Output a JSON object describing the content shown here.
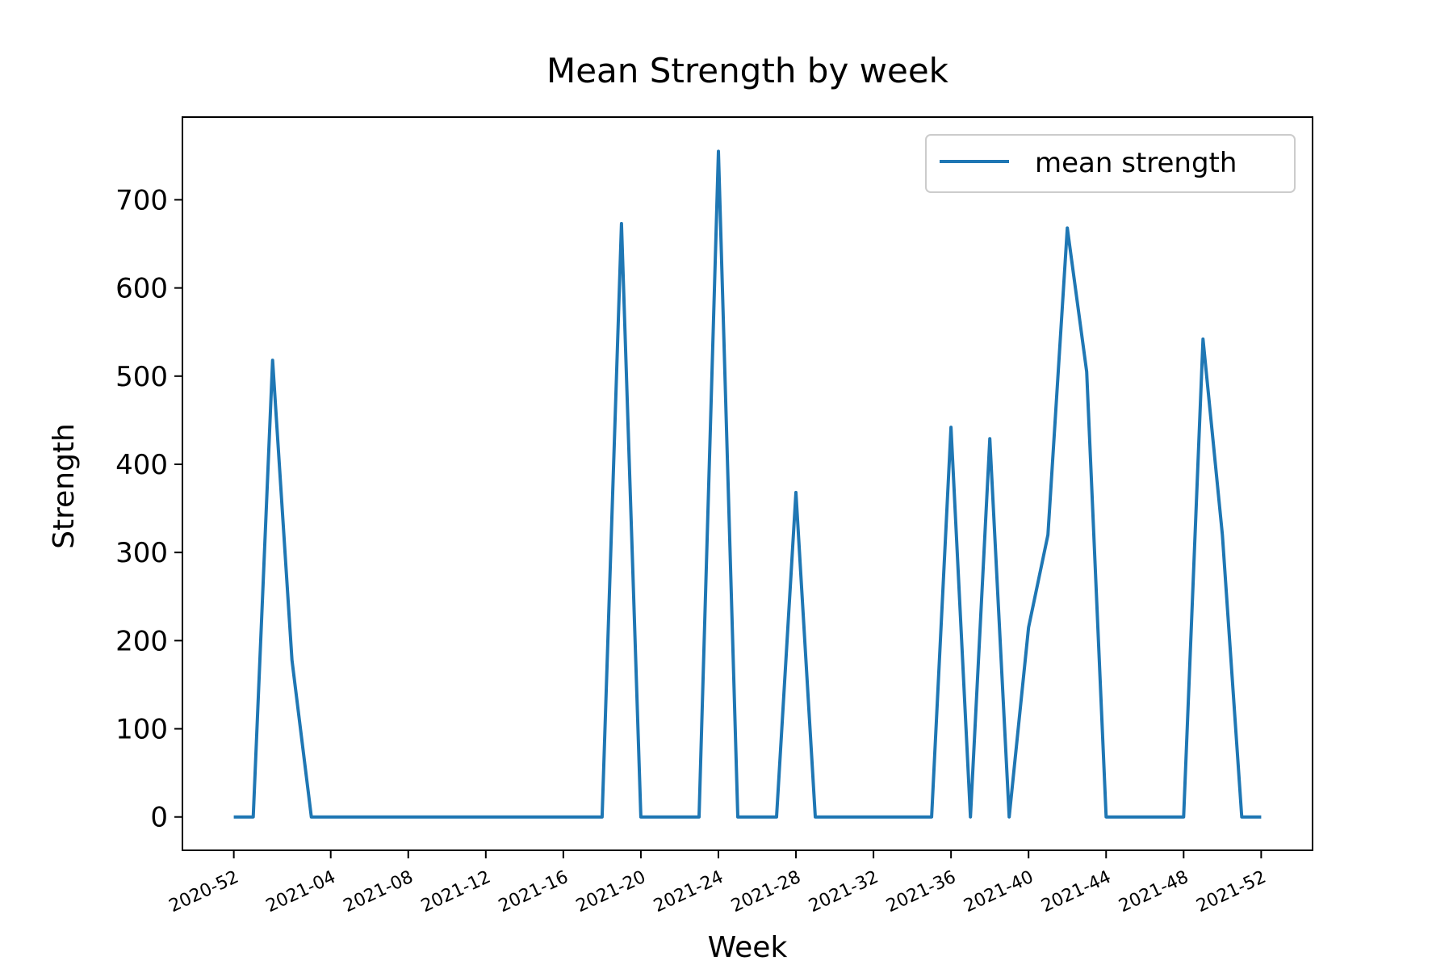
{
  "chart_data": {
    "type": "line",
    "title": "Mean Strength by week",
    "xlabel": "Week",
    "ylabel": "Strength",
    "ylim": [
      -37.8,
      793.8
    ],
    "yticks": [
      0,
      100,
      200,
      300,
      400,
      500,
      600,
      700
    ],
    "xticks": [
      "2020-52",
      "2021-04",
      "2021-08",
      "2021-12",
      "2021-16",
      "2021-20",
      "2021-24",
      "2021-28",
      "2021-32",
      "2021-36",
      "2021-40",
      "2021-44",
      "2021-48",
      "2021-52"
    ],
    "grid": false,
    "legend": {
      "position": "top-right"
    },
    "series": [
      {
        "name": "mean strength",
        "color": "#1f77b4",
        "x": [
          "2020-52",
          "2020-53",
          "2021-01",
          "2021-02",
          "2021-03",
          "2021-04",
          "2021-05",
          "2021-06",
          "2021-07",
          "2021-08",
          "2021-09",
          "2021-10",
          "2021-11",
          "2021-12",
          "2021-13",
          "2021-14",
          "2021-15",
          "2021-16",
          "2021-17",
          "2021-18",
          "2021-19",
          "2021-20",
          "2021-21",
          "2021-22",
          "2021-23",
          "2021-24",
          "2021-25",
          "2021-26",
          "2021-27",
          "2021-28",
          "2021-29",
          "2021-30",
          "2021-31",
          "2021-32",
          "2021-33",
          "2021-34",
          "2021-35",
          "2021-36",
          "2021-37",
          "2021-38",
          "2021-39",
          "2021-40",
          "2021-41",
          "2021-42",
          "2021-43",
          "2021-44",
          "2021-45",
          "2021-46",
          "2021-47",
          "2021-48",
          "2021-49",
          "2021-50",
          "2021-51",
          "2021-52"
        ],
        "values": [
          0,
          0,
          518,
          178,
          0,
          0,
          0,
          0,
          0,
          0,
          0,
          0,
          0,
          0,
          0,
          0,
          0,
          0,
          0,
          0,
          673,
          0,
          0,
          0,
          0,
          755,
          0,
          0,
          0,
          368,
          0,
          0,
          0,
          0,
          0,
          0,
          0,
          442,
          0,
          429,
          0,
          215,
          320,
          668,
          505,
          0,
          0,
          0,
          0,
          0,
          542,
          320,
          0,
          0
        ]
      }
    ]
  }
}
